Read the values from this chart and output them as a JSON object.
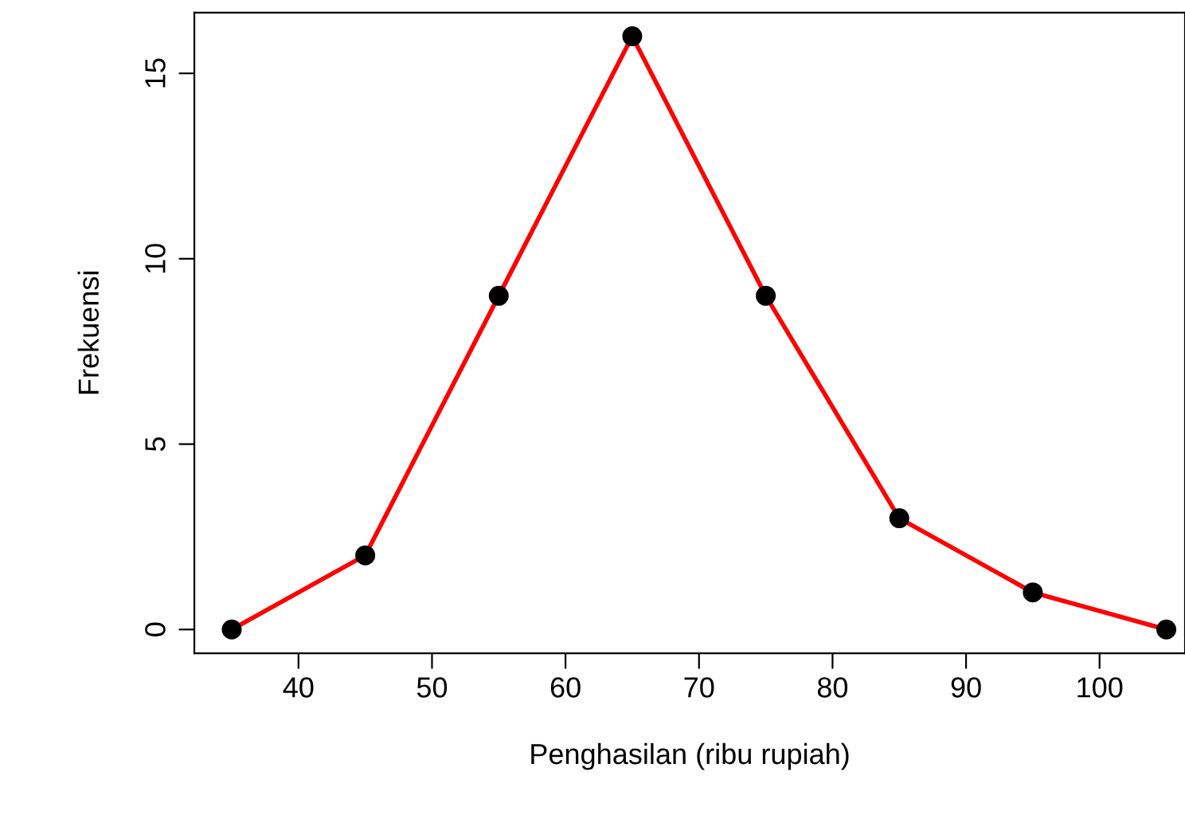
{
  "chart_data": {
    "type": "line",
    "xlabel": "Penghasilan (ribu rupiah)",
    "ylabel": "Frekuensi",
    "x": [
      35,
      45,
      55,
      65,
      75,
      85,
      95,
      105
    ],
    "series": [
      {
        "color": "#ff0000",
        "values": [
          0,
          2,
          9,
          16,
          9,
          3,
          1,
          0
        ]
      }
    ],
    "marker": "circle",
    "line_style": "solid",
    "grid": false,
    "xlim": [
      32.2,
      106.4
    ],
    "ylim": [
      -0.64,
      16.64
    ],
    "xticks": [
      40,
      50,
      60,
      70,
      80,
      90,
      100
    ],
    "yticks": [
      0,
      5,
      10,
      15
    ]
  }
}
